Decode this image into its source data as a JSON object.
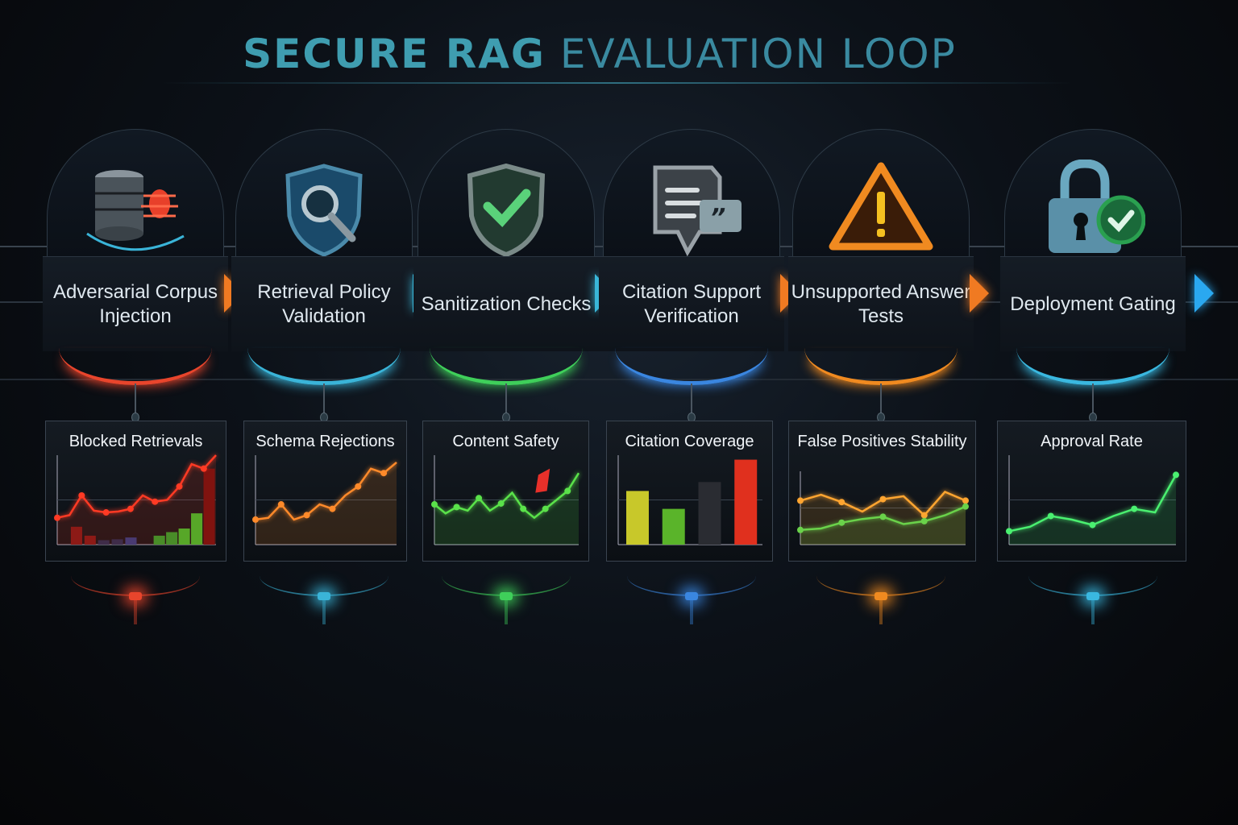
{
  "title": {
    "bold": "SECURE RAG",
    "light": "EVALUATION LOOP"
  },
  "stages": [
    {
      "label": "Adversarial Corpus Injection",
      "icon": "database-bug-icon",
      "color": "#e8452c",
      "chevron_color": "#f07a22"
    },
    {
      "label": "Retrieval Policy Validation",
      "icon": "shield-search-icon",
      "color": "#3ab4d8",
      "chevron_color": "#39b6d8"
    },
    {
      "label": "Sanitization Checks",
      "icon": "shield-check-icon",
      "color": "#3fcf5a",
      "chevron_color": "#39b6d8"
    },
    {
      "label": "Citation Support Verification",
      "icon": "document-quote-icon",
      "color": "#3a86e0",
      "chevron_color": "#f07a22"
    },
    {
      "label": "Unsupported Answer Tests",
      "icon": "warning-triangle-icon",
      "color": "#f08a20",
      "chevron_color": "#f07a22"
    },
    {
      "label": "Deployment Gating",
      "icon": "padlock-check-icon",
      "color": "#3ab8e0",
      "chevron_color": "#2aa8f0"
    }
  ],
  "chart_data": [
    {
      "type": "line",
      "title": "Blocked Retrievals",
      "series": [
        {
          "color": "#ff3a24",
          "values": [
            30,
            33,
            55,
            38,
            36,
            37,
            40,
            55,
            48,
            50,
            65,
            90,
            85,
            100
          ]
        }
      ],
      "bars": {
        "values": [
          20,
          10,
          5,
          6,
          8,
          10,
          14,
          18,
          35,
          85
        ],
        "colors": [
          "#7a1414",
          "#7a1414",
          "#1e2a50",
          "#1e2a50",
          "#2a3a80",
          "#2a9a2a",
          "#2a9a2a",
          "#3aba2a",
          "#3aba2a",
          "#6a0c0c"
        ]
      }
    },
    {
      "type": "line",
      "title": "Schema Rejections",
      "series": [
        {
          "color": "#ff8a2a",
          "values": [
            28,
            30,
            45,
            28,
            33,
            45,
            40,
            55,
            65,
            85,
            80,
            92
          ]
        }
      ]
    },
    {
      "type": "line",
      "title": "Content Safety",
      "series": [
        {
          "color": "#5ae24a",
          "values": [
            45,
            35,
            42,
            38,
            52,
            38,
            46,
            58,
            40,
            30,
            40,
            50,
            60,
            80
          ]
        }
      ]
    },
    {
      "type": "bar",
      "title": "Citation Coverage",
      "categories": [
        "",
        "",
        "",
        ""
      ],
      "values": [
        60,
        40,
        70,
        95
      ],
      "colors": [
        "#c8c82a",
        "#5ab42a",
        "#2a2c32",
        "#e0301e"
      ]
    },
    {
      "type": "line",
      "title": "False Positives Stability",
      "series": [
        {
          "color": "#ffa530",
          "values": [
            60,
            68,
            58,
            45,
            62,
            66,
            40,
            72,
            60
          ]
        },
        {
          "color": "#6ad24a",
          "values": [
            20,
            22,
            30,
            35,
            38,
            28,
            32,
            40,
            52
          ]
        }
      ]
    },
    {
      "type": "area",
      "title": "Approval Rate",
      "series": [
        {
          "color": "#4af070",
          "values": [
            15,
            20,
            32,
            28,
            22,
            32,
            40,
            36,
            78
          ]
        }
      ]
    }
  ]
}
